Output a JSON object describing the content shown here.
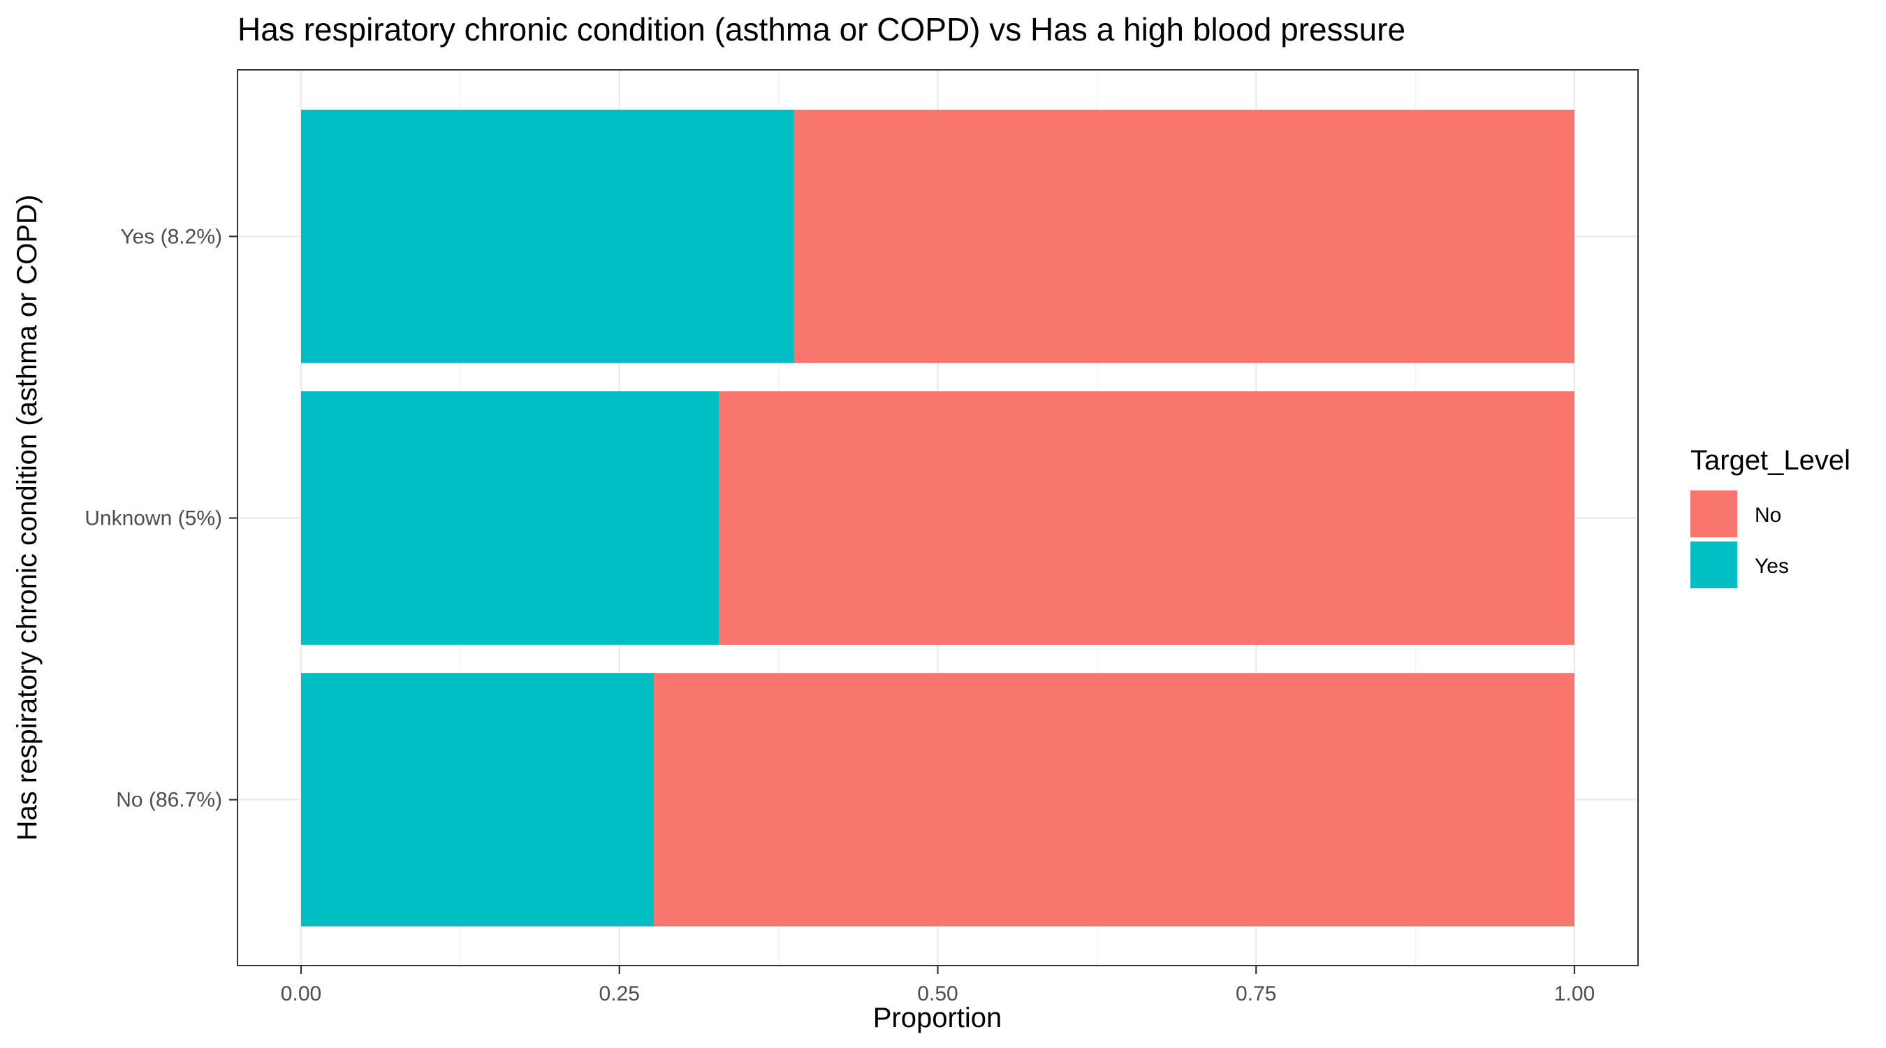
{
  "chart_data": {
    "type": "bar",
    "orientation": "horizontal",
    "stacked": true,
    "title": "Has respiratory chronic condition (asthma or COPD) vs Has a high blood pressure",
    "xlabel": "Proportion",
    "ylabel": "Has respiratory chronic condition (asthma or COPD)",
    "xlim": [
      0,
      1
    ],
    "x_ticks": [
      "0.00",
      "0.25",
      "0.50",
      "0.75",
      "1.00"
    ],
    "x_tick_values": [
      0,
      0.25,
      0.5,
      0.75,
      1.0
    ],
    "categories": [
      "No (86.7%)",
      "Unknown (5%)",
      "Yes (8.2%)"
    ],
    "series": [
      {
        "name": "Yes",
        "color": "#00BFC4",
        "values": [
          0.277,
          0.328,
          0.387
        ]
      },
      {
        "name": "No",
        "color": "#F8766D",
        "values": [
          0.723,
          0.672,
          0.613
        ]
      }
    ],
    "grid": true,
    "legend": {
      "title": "Target_Level",
      "placement": "right",
      "entries": [
        {
          "label": "No",
          "color": "#F8766D"
        },
        {
          "label": "Yes",
          "color": "#00BFC4"
        }
      ]
    }
  }
}
